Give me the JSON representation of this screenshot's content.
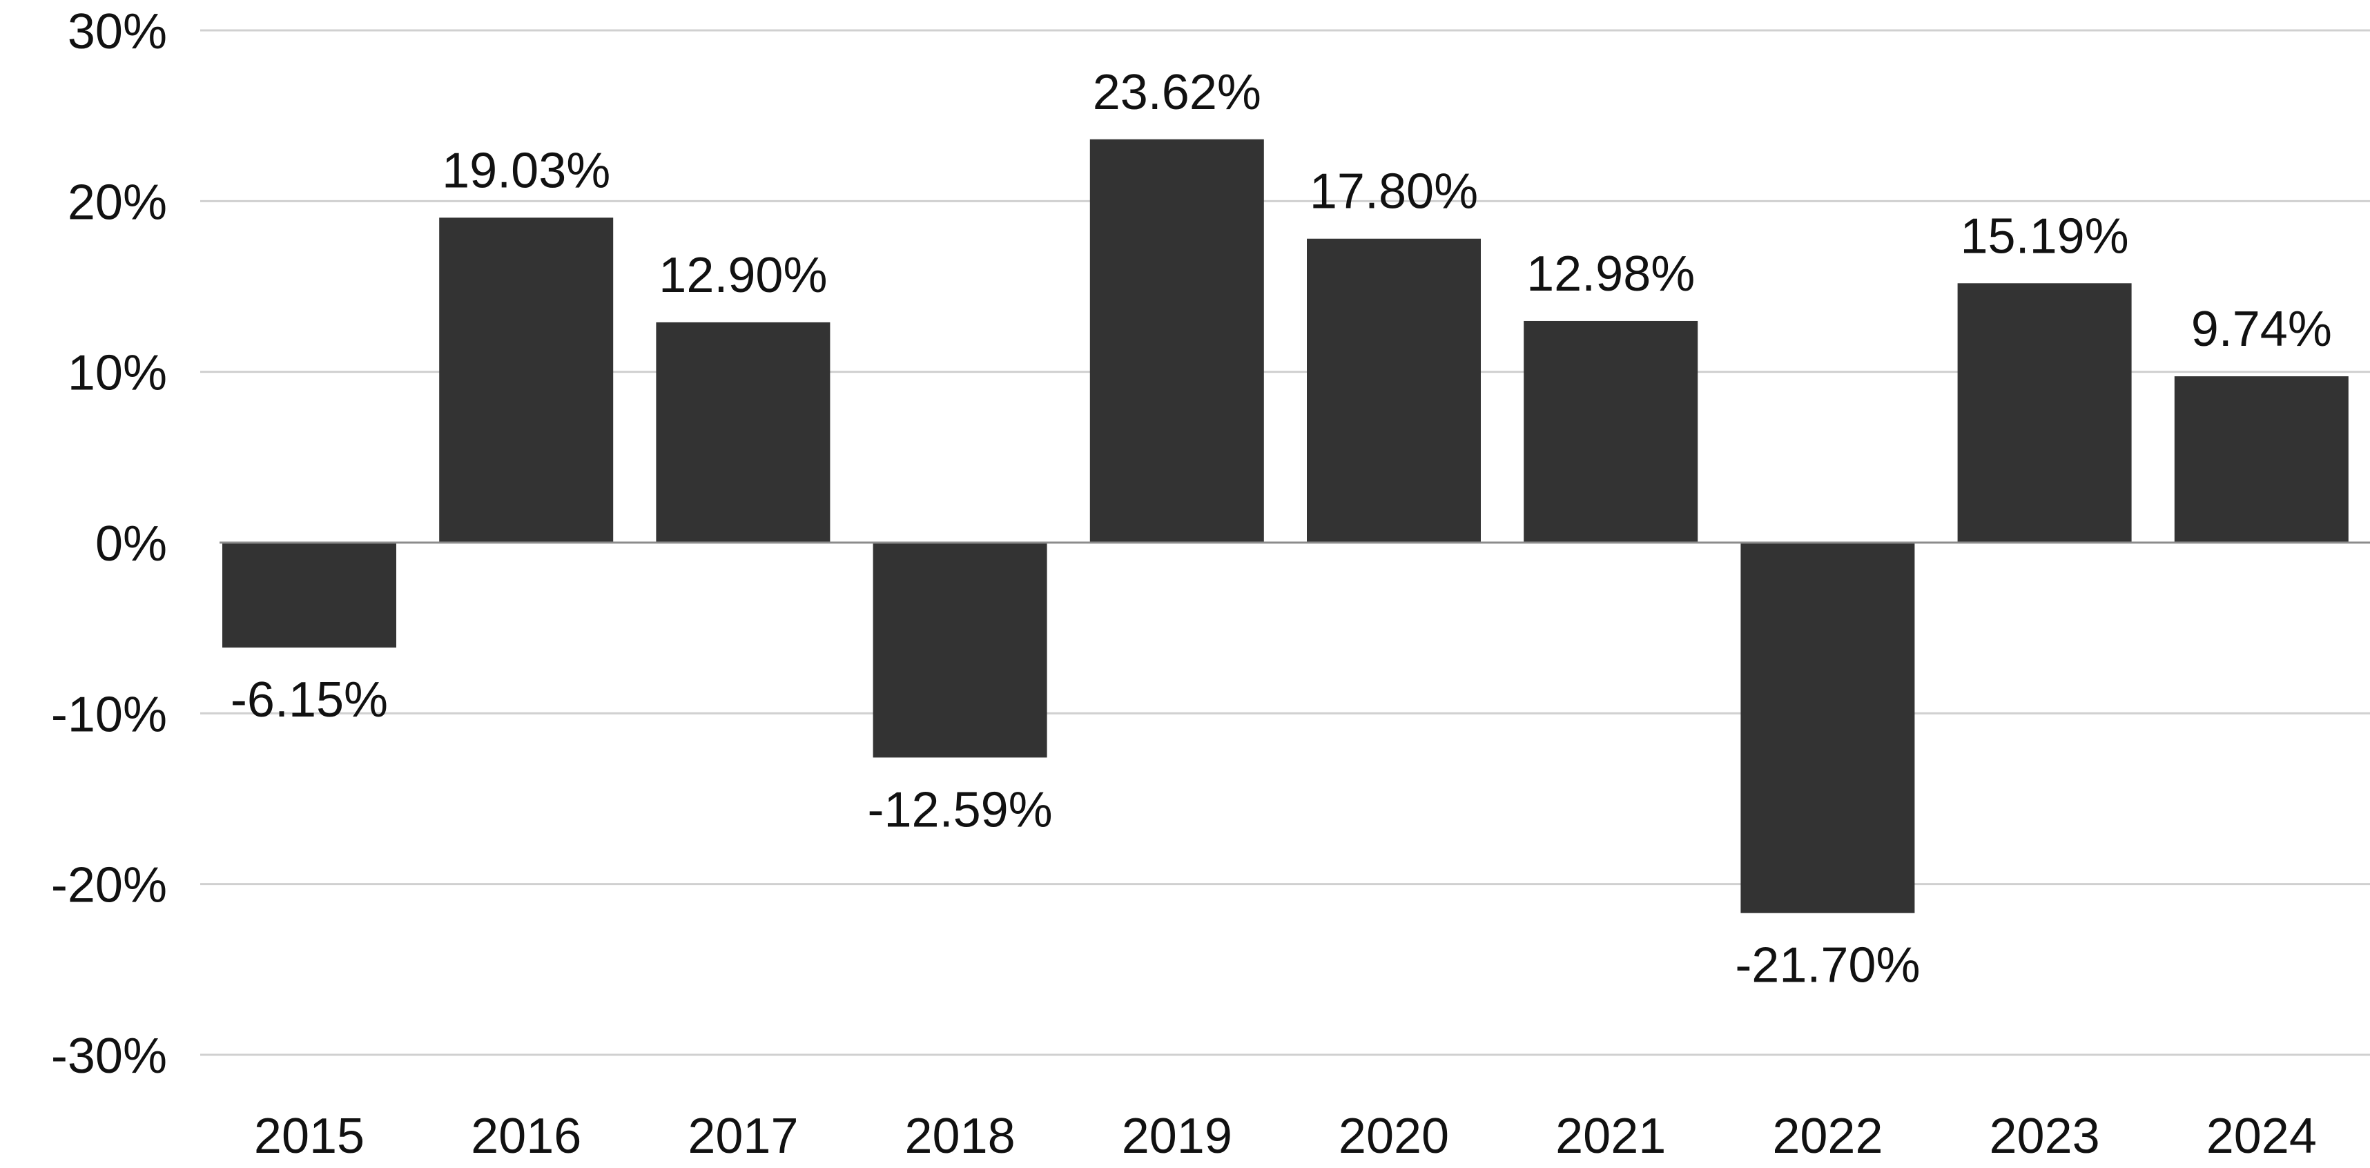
{
  "chart_data": {
    "type": "bar",
    "title": "",
    "xlabel": "",
    "ylabel": "",
    "categories": [
      "2015",
      "2016",
      "2017",
      "2018",
      "2019",
      "2020",
      "2021",
      "2022",
      "2023",
      "2024"
    ],
    "values": [
      -6.15,
      19.03,
      12.9,
      -12.59,
      23.62,
      17.8,
      12.98,
      -21.7,
      15.19,
      9.74
    ],
    "data_labels": [
      "-6.15%",
      "19.03%",
      "12.90%",
      "-12.59%",
      "23.62%",
      "17.80%",
      "12.98%",
      "-21.70%",
      "15.19%",
      "9.74%"
    ],
    "ylim": [
      -30,
      30
    ],
    "yticks": [
      30,
      20,
      10,
      0,
      -10,
      -20,
      -30
    ],
    "ytick_labels": [
      "30%",
      "20%",
      "10%",
      "0%",
      "-10%",
      "-20%",
      "-30%"
    ],
    "grid": true,
    "legend": "none",
    "bar_color": "#333333"
  }
}
